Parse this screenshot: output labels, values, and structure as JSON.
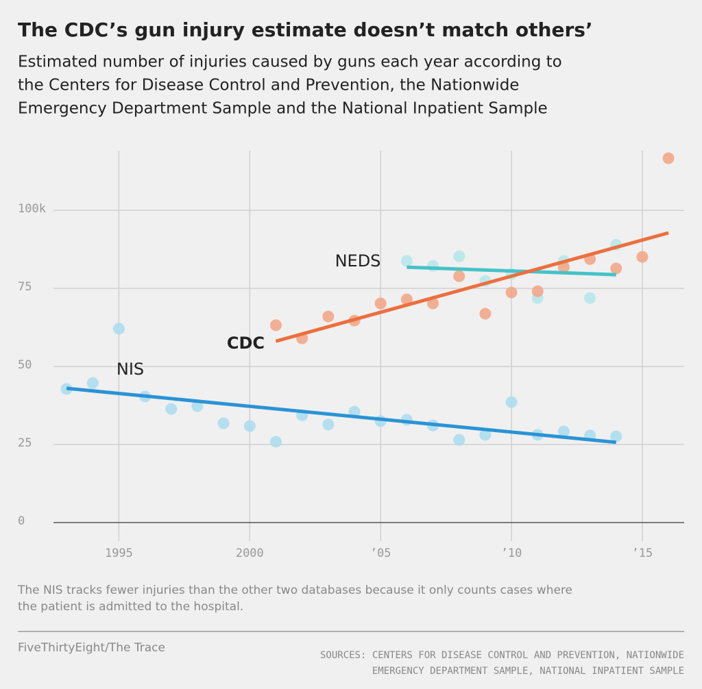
{
  "chart_data": {
    "type": "scatter",
    "title": "The CDC’s gun injury estimate doesn’t match others’",
    "subtitle": [
      "Estimated number of injuries caused by guns each year according to",
      "the Centers for Disease Control and Prevention, the Nationwide",
      "Emergency Department Sample and the National Inpatient Sample"
    ],
    "note": [
      "The NIS tracks fewer injuries than the other two databases because it only counts cases where",
      "the patient is admitted to the hospital."
    ],
    "credit": "FiveThirtyEight/The Trace",
    "sources": [
      "SOURCES: CENTERS FOR DISEASE CONTROL AND PREVENTION, NATIONWIDE",
      "EMERGENCY DEPARTMENT SAMPLE, NATIONAL INPATIENT SAMPLE"
    ],
    "xlim": [
      1992.5,
      2016.6
    ],
    "ylim": [
      0,
      120
    ],
    "xticks": [
      1995,
      2000,
      {
        "value": 2005,
        "label": "’05"
      },
      {
        "value": 2010,
        "label": "’10"
      },
      {
        "value": 2015,
        "label": "’15"
      }
    ],
    "yticks": [
      0,
      25,
      50,
      75,
      {
        "value": 100,
        "label": "100k"
      }
    ],
    "grid": true,
    "series": [
      {
        "name": "NIS",
        "color": "#a8dcee",
        "trend_color": "#2a93d5",
        "x": [
          1993,
          1994,
          1995,
          1996,
          1997,
          1998,
          1999,
          2000,
          2001,
          2002,
          2003,
          2004,
          2005,
          2006,
          2007,
          2008,
          2009,
          2010,
          2011,
          2012,
          2013,
          2014
        ],
        "values": [
          42.8,
          44.7,
          62.1,
          40.4,
          36.4,
          37.3,
          31.8,
          30.9,
          25.9,
          34.4,
          31.4,
          35.5,
          32.5,
          32.9,
          31.1,
          26.5,
          28.1,
          38.6,
          28.1,
          29.2,
          27.9,
          27.6
        ],
        "trend": {
          "x": [
            1993,
            2014
          ],
          "values": [
            43.0,
            25.7
          ]
        }
      },
      {
        "name": "NEDS",
        "color": "#b4e6ea",
        "trend_color": "#44c3c8",
        "x": [
          2006,
          2007,
          2008,
          2009,
          2010,
          2011,
          2012,
          2013,
          2014
        ],
        "values": [
          83.8,
          82.2,
          85.3,
          77.4,
          79.6,
          71.9,
          83.8,
          71.9,
          89.0
        ],
        "trend": {
          "x": [
            2006,
            2014
          ],
          "values": [
            81.8,
            79.4
          ]
        }
      },
      {
        "name": "CDC",
        "color": "#f2a384",
        "trend_color": "#ec6f3f",
        "x": [
          2001,
          2002,
          2003,
          2004,
          2005,
          2006,
          2007,
          2008,
          2009,
          2010,
          2011,
          2012,
          2013,
          2014,
          2015,
          2016
        ],
        "values": [
          63.2,
          59.0,
          66.0,
          64.7,
          70.2,
          71.5,
          70.2,
          78.9,
          66.9,
          73.7,
          74.1,
          81.8,
          84.4,
          81.4,
          85.1,
          116.7
        ],
        "trend": {
          "x": [
            2001,
            2016
          ],
          "values": [
            58.1,
            92.8
          ]
        }
      }
    ]
  }
}
